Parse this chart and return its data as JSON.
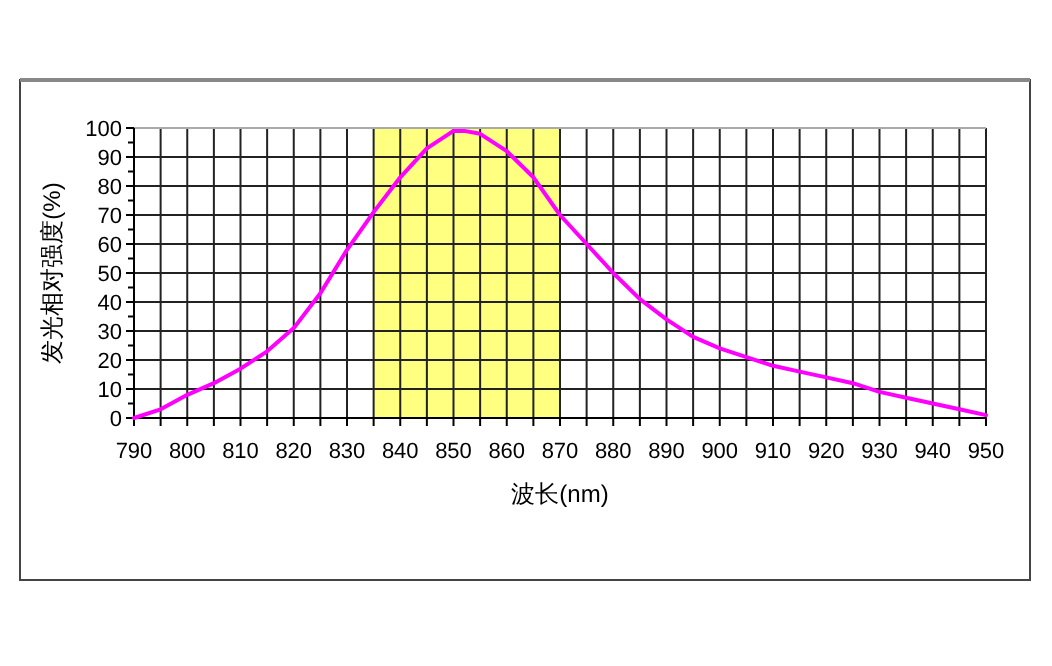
{
  "chart_data": {
    "type": "line",
    "xlabel": "波长(nm)",
    "ylabel": "发光相对强度(%)",
    "x": [
      790,
      795,
      800,
      805,
      810,
      815,
      820,
      825,
      830,
      835,
      840,
      845,
      850,
      852,
      855,
      860,
      865,
      870,
      875,
      880,
      885,
      890,
      895,
      900,
      905,
      910,
      915,
      920,
      925,
      930,
      935,
      940,
      945,
      950
    ],
    "values": [
      0,
      3,
      8,
      12,
      17,
      23,
      31,
      43,
      58,
      71,
      83,
      93,
      99,
      99,
      98,
      92,
      83,
      70,
      60,
      50,
      41,
      34,
      28,
      24,
      21,
      18,
      16,
      14,
      12,
      9,
      7,
      5,
      3,
      1
    ],
    "color": "#ff00ff",
    "marker": "none",
    "line_style": "solid",
    "grid": true,
    "xlim": [
      790,
      950
    ],
    "xticks": [
      790,
      800,
      810,
      820,
      830,
      840,
      850,
      860,
      870,
      880,
      890,
      900,
      910,
      920,
      930,
      940,
      950
    ],
    "ylim": [
      0,
      100
    ],
    "yticks": [
      0,
      10,
      20,
      30,
      40,
      50,
      60,
      70,
      80,
      90,
      100
    ],
    "bands": [
      {
        "axis": "x",
        "from": 835,
        "to": 870,
        "color": "#ffff80"
      }
    ]
  }
}
